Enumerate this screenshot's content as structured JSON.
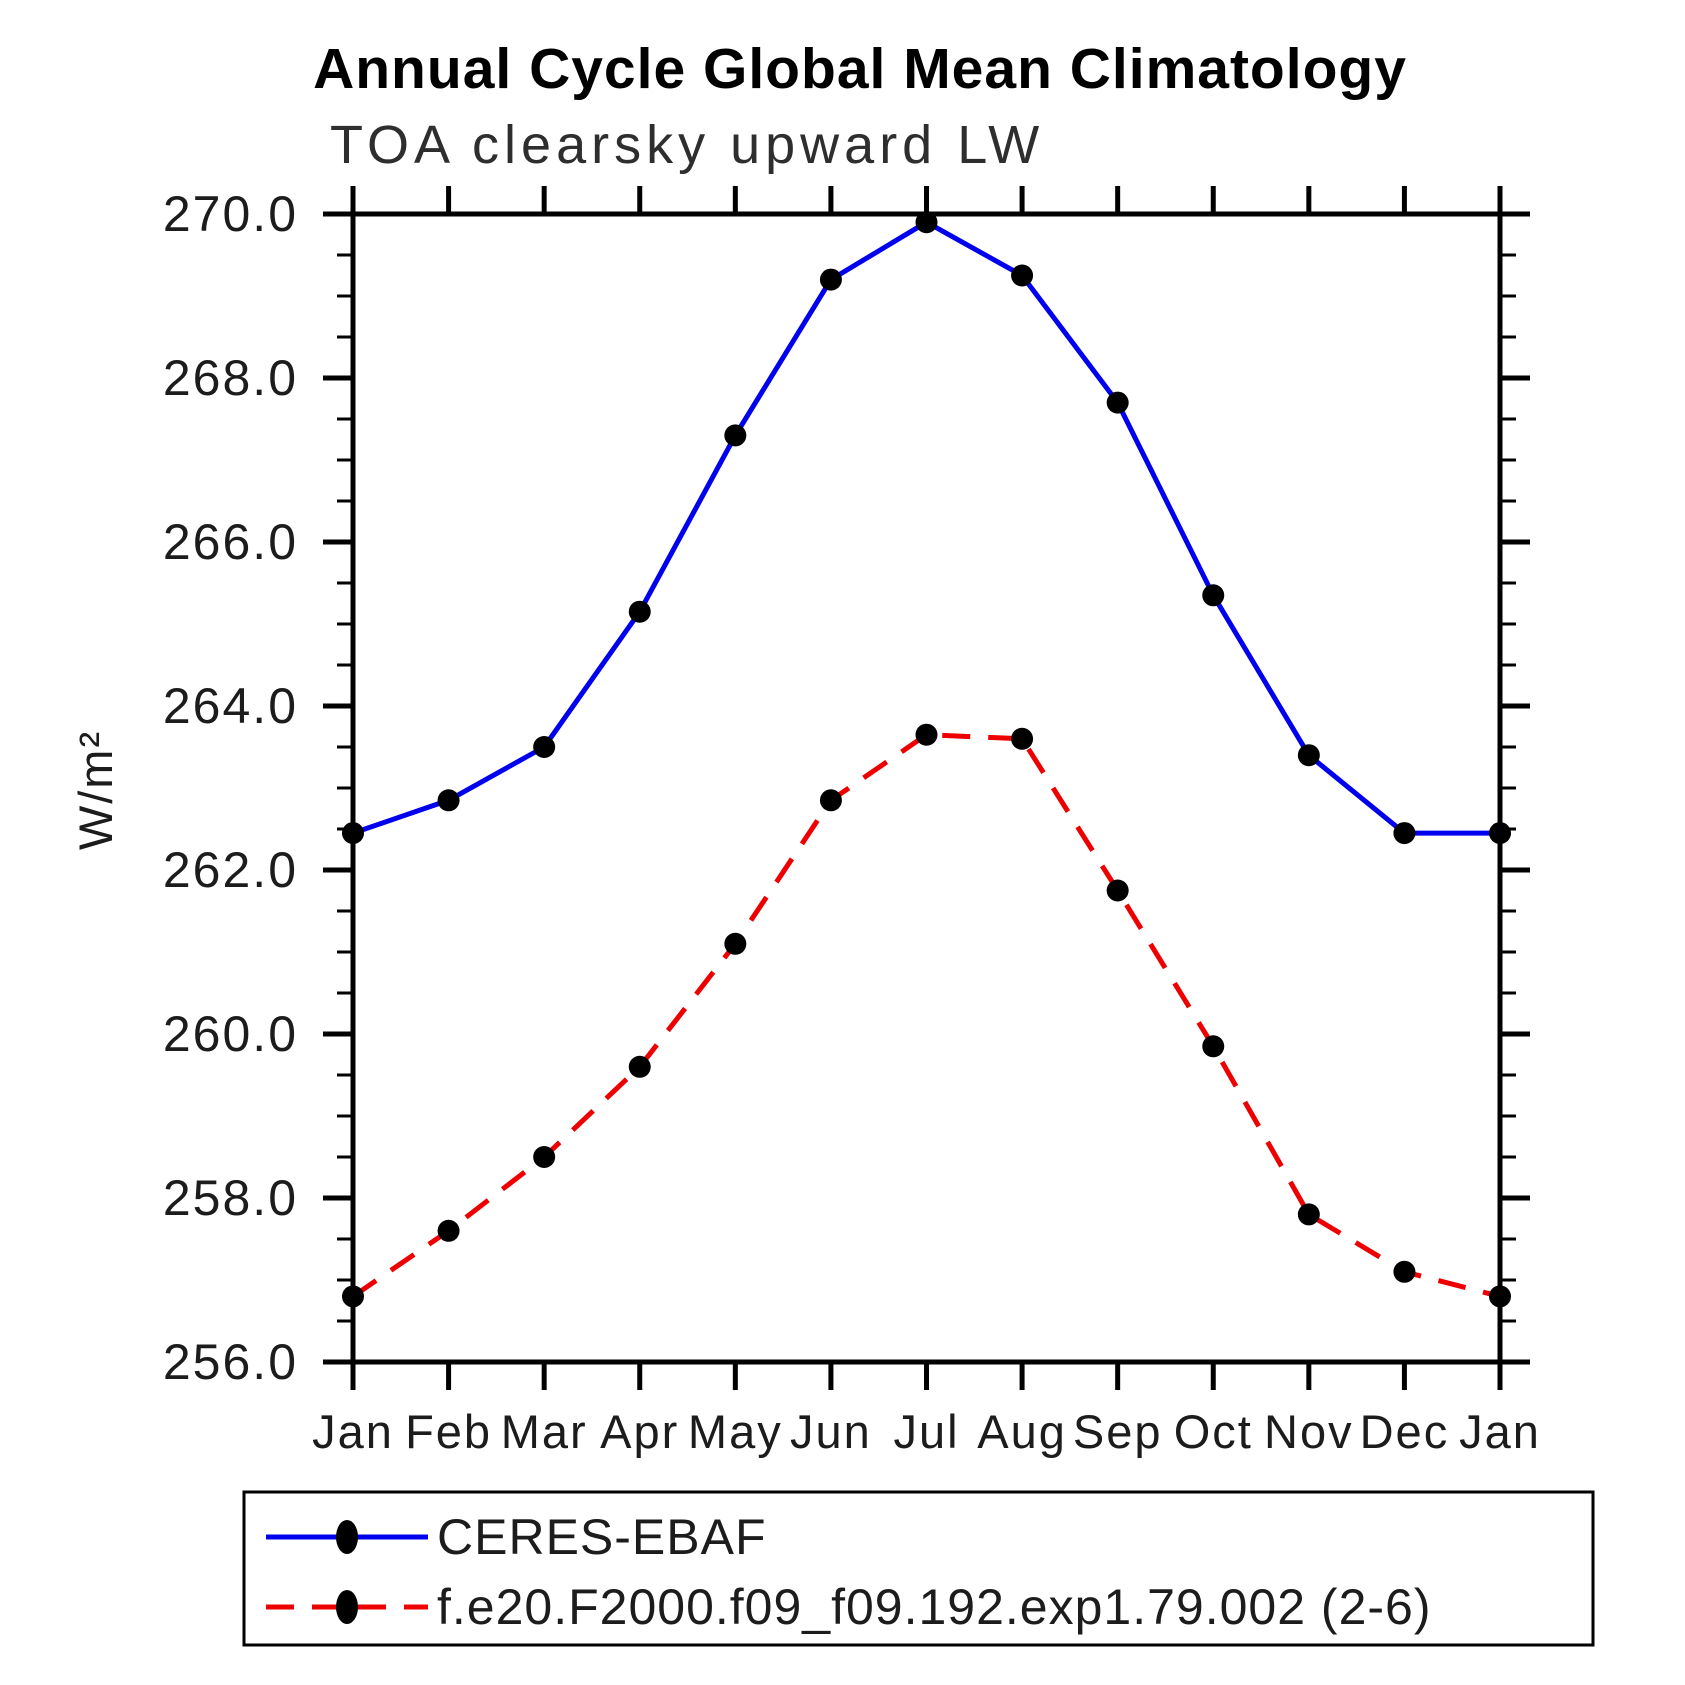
{
  "chart_data": {
    "type": "line",
    "title": "Annual Cycle Global Mean Climatology",
    "subtitle": "TOA clearsky upward LW",
    "ylabel": "W/m²",
    "xlabel": "",
    "categories": [
      "Jan",
      "Feb",
      "Mar",
      "Apr",
      "May",
      "Jun",
      "Jul",
      "Aug",
      "Sep",
      "Oct",
      "Nov",
      "Dec",
      "Jan"
    ],
    "ylim": [
      256.0,
      270.0
    ],
    "ytick_major_step": 2.0,
    "ytick_minor_step": 0.5,
    "ytick_labels": [
      "256.0",
      "258.0",
      "260.0",
      "262.0",
      "264.0",
      "266.0",
      "268.0",
      "270.0"
    ],
    "grid": false,
    "legend_position": "bottom-left-box",
    "series": [
      {
        "name": "CERES-EBAF",
        "color": "#0000ee",
        "line_style": "solid",
        "marker": "filled-circle",
        "marker_color": "#000000",
        "values": [
          262.45,
          262.85,
          263.5,
          265.15,
          267.3,
          269.2,
          269.9,
          269.25,
          267.7,
          265.35,
          263.4,
          262.45,
          262.45
        ]
      },
      {
        "name": "f.e20.F2000.f09_f09.192.exp1.79.002 (2-6)",
        "color": "#ee0000",
        "line_style": "dashed",
        "marker": "filled-circle",
        "marker_color": "#000000",
        "values": [
          256.8,
          257.6,
          258.5,
          259.6,
          261.1,
          262.85,
          263.65,
          263.6,
          261.75,
          259.85,
          257.8,
          257.1,
          256.8
        ]
      }
    ]
  }
}
